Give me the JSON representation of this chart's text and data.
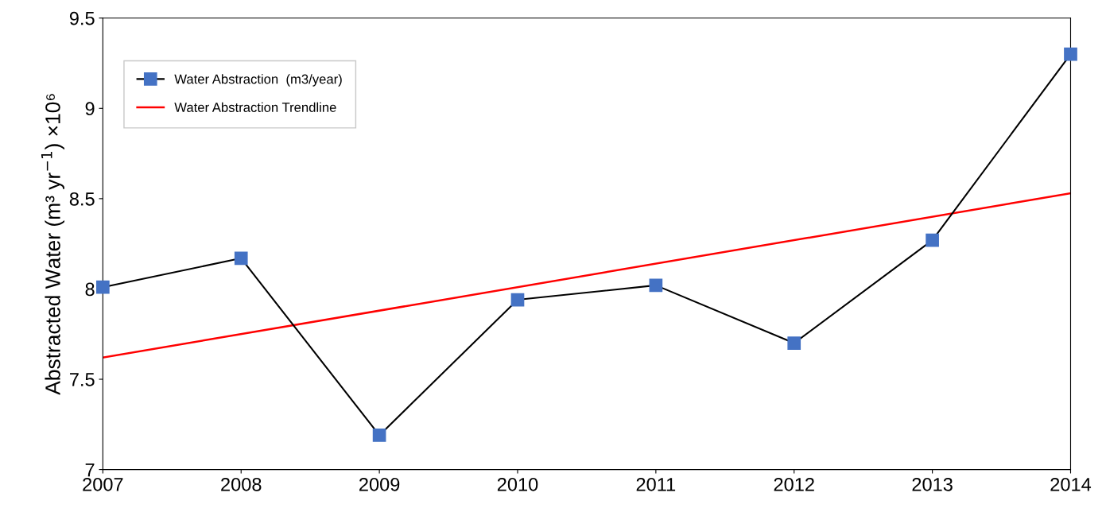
{
  "chart_data": {
    "type": "line",
    "ylabel": "Abstracted Water (m³ yr$^{−1}$) ×10⁶",
    "x": [
      2007,
      2008,
      2009,
      2010,
      2011,
      2012,
      2013,
      2014
    ],
    "series": [
      {
        "name": "Water Abstraction  (m3/year)",
        "color": "#4472c4",
        "marker": "square",
        "values": [
          8.01,
          8.17,
          7.19,
          7.94,
          8.02,
          7.7,
          8.27,
          9.3
        ]
      },
      {
        "name": "Water Abstraction Trendline",
        "color": "#ff0000",
        "marker": "none",
        "x": [
          2007,
          2014
        ],
        "values": [
          7.62,
          8.53
        ]
      }
    ],
    "xlim": [
      2007,
      2014
    ],
    "xticks": [
      2007,
      2008,
      2009,
      2010,
      2011,
      2012,
      2013,
      2014
    ],
    "ylim": [
      7,
      9.5
    ],
    "yticks": [
      7,
      7.5,
      8,
      8.5,
      9,
      9.5
    ],
    "grid": false,
    "legend": "top left"
  }
}
